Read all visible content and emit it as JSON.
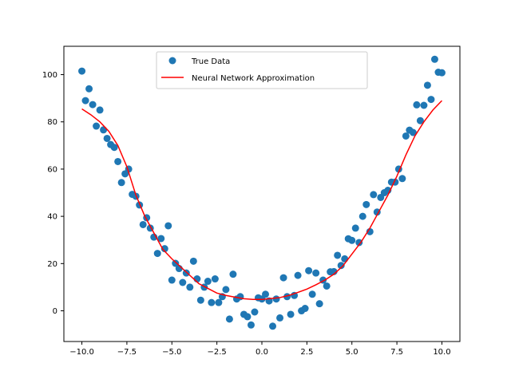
{
  "chart_data": {
    "type": "scatter",
    "title": "",
    "xlabel": "",
    "ylabel": "",
    "xlim": [
      -11,
      11
    ],
    "ylim": [
      -13,
      112
    ],
    "xticks": [
      -10.0,
      -7.5,
      -5.0,
      -2.5,
      0.0,
      2.5,
      5.0,
      7.5,
      10.0
    ],
    "xtick_labels": [
      "−10.0",
      "−7.5",
      "−5.0",
      "−2.5",
      "0.0",
      "2.5",
      "5.0",
      "7.5",
      "10.0"
    ],
    "yticks": [
      0,
      20,
      40,
      60,
      80,
      100
    ],
    "ytick_labels": [
      "0",
      "20",
      "40",
      "60",
      "80",
      "100"
    ],
    "grid": false,
    "legend": {
      "position": "top-center",
      "entries": [
        "True Data",
        "Neural Network Approximation"
      ]
    },
    "series": [
      {
        "name": "True Data",
        "kind": "scatter",
        "color": "#1f77b4",
        "x": [
          -10.0,
          -9.8,
          -9.6,
          -9.4,
          -9.2,
          -9.0,
          -8.8,
          -8.6,
          -8.4,
          -8.2,
          -8.0,
          -7.8,
          -7.6,
          -7.4,
          -7.2,
          -7.0,
          -6.8,
          -6.6,
          -6.4,
          -6.2,
          -6.0,
          -5.8,
          -5.6,
          -5.4,
          -5.2,
          -5.0,
          -4.8,
          -4.6,
          -4.4,
          -4.2,
          -4.0,
          -3.8,
          -3.6,
          -3.4,
          -3.2,
          -3.0,
          -2.8,
          -2.6,
          -2.4,
          -2.2,
          -2.0,
          -1.8,
          -1.6,
          -1.4,
          -1.2,
          -1.0,
          -0.8,
          -0.6,
          -0.4,
          -0.2,
          0.0,
          0.2,
          0.4,
          0.6,
          0.8,
          1.0,
          1.2,
          1.4,
          1.6,
          1.8,
          2.0,
          2.2,
          2.4,
          2.6,
          2.8,
          3.0,
          3.2,
          3.4,
          3.6,
          3.8,
          4.0,
          4.2,
          4.4,
          4.6,
          4.8,
          5.0,
          5.2,
          5.4,
          5.6,
          5.8,
          6.0,
          6.2,
          6.4,
          6.6,
          6.8,
          7.0,
          7.2,
          7.4,
          7.6,
          7.8,
          8.0,
          8.2,
          8.4,
          8.6,
          8.8,
          9.0,
          9.2,
          9.4,
          9.6,
          9.8,
          10.0
        ],
        "y": [
          101.5,
          89.0,
          94.0,
          87.3,
          78.2,
          85.0,
          76.6,
          73.0,
          70.4,
          69.2,
          63.2,
          54.3,
          58.0,
          60.0,
          49.3,
          48.5,
          44.8,
          36.5,
          39.4,
          35.0,
          31.2,
          24.3,
          30.6,
          26.3,
          36.0,
          13.0,
          20.1,
          17.9,
          12.0,
          16.0,
          10.0,
          21.0,
          13.5,
          4.5,
          10.0,
          12.5,
          3.5,
          13.5,
          3.5,
          6.0,
          9.0,
          -3.5,
          15.5,
          5.0,
          6.0,
          -1.5,
          -2.5,
          -6.0,
          -0.5,
          5.5,
          5.0,
          7.0,
          4.2,
          -6.5,
          5.0,
          -3.0,
          14.0,
          6.0,
          -1.5,
          6.5,
          15.0,
          0.0,
          1.0,
          17.0,
          7.0,
          16.0,
          3.0,
          13.0,
          10.5,
          16.5,
          16.6,
          23.5,
          19.2,
          22.0,
          30.5,
          29.8,
          35.0,
          28.9,
          40.0,
          45.0,
          33.5,
          49.2,
          41.8,
          48.0,
          50.0,
          51.0,
          54.5,
          54.5,
          60.0,
          56.0,
          74.0,
          76.5,
          75.5,
          87.2,
          80.5,
          87.0,
          95.5,
          89.5,
          106.5,
          101.0,
          100.8
        ]
      },
      {
        "name": "Neural Network Approximation",
        "kind": "line",
        "color": "#ff0000",
        "x": [
          -10.0,
          -9.5,
          -9.0,
          -8.5,
          -8.0,
          -7.5,
          -7.0,
          -6.5,
          -6.0,
          -5.5,
          -5.0,
          -4.5,
          -4.0,
          -3.5,
          -3.0,
          -2.5,
          -2.0,
          -1.5,
          -1.0,
          -0.5,
          0.0,
          0.5,
          1.0,
          1.5,
          2.0,
          2.5,
          3.0,
          3.5,
          4.0,
          4.5,
          5.0,
          5.5,
          6.0,
          6.5,
          7.0,
          7.5,
          8.0,
          8.5,
          9.0,
          9.5,
          10.0
        ],
        "y": [
          85.5,
          83.0,
          80.0,
          76.0,
          70.0,
          61.0,
          49.0,
          40.0,
          33.0,
          26.0,
          22.0,
          18.5,
          15.0,
          11.5,
          9.5,
          7.5,
          6.5,
          5.8,
          5.1,
          4.8,
          4.8,
          5.2,
          5.6,
          6.5,
          7.8,
          9.2,
          11.0,
          13.0,
          15.5,
          19.0,
          24.0,
          29.0,
          35.0,
          42.0,
          49.0,
          57.0,
          66.0,
          74.0,
          80.0,
          85.0,
          89.0
        ]
      }
    ]
  }
}
